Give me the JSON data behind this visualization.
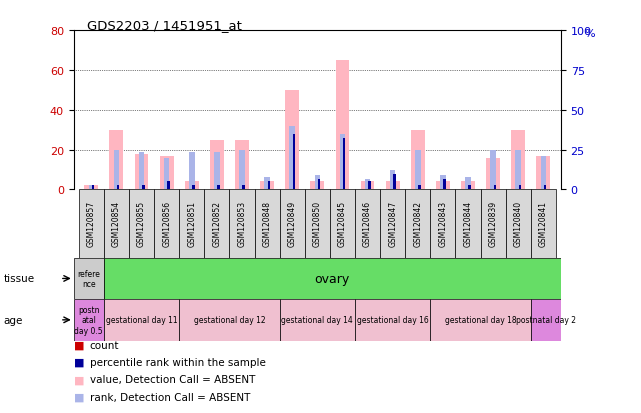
{
  "title": "GDS2203 / 1451951_at",
  "samples": [
    "GSM120857",
    "GSM120854",
    "GSM120855",
    "GSM120856",
    "GSM120851",
    "GSM120852",
    "GSM120853",
    "GSM120848",
    "GSM120849",
    "GSM120850",
    "GSM120845",
    "GSM120846",
    "GSM120847",
    "GSM120842",
    "GSM120843",
    "GSM120844",
    "GSM120839",
    "GSM120840",
    "GSM120841"
  ],
  "count_values": [
    0,
    0,
    0,
    0,
    0,
    0,
    0,
    0,
    0,
    0,
    0,
    0,
    0,
    0,
    0,
    0,
    0,
    0,
    0
  ],
  "percentile_values": [
    2,
    2,
    2,
    4,
    2,
    2,
    2,
    4,
    28,
    5,
    26,
    4,
    8,
    2,
    5,
    2,
    2,
    2,
    2
  ],
  "value_absent": [
    2,
    30,
    18,
    17,
    4,
    25,
    25,
    4,
    50,
    4,
    65,
    4,
    4,
    30,
    4,
    4,
    16,
    30,
    17
  ],
  "rank_absent": [
    2,
    20,
    19,
    16,
    19,
    19,
    20,
    6,
    32,
    7,
    28,
    5,
    10,
    20,
    7,
    6,
    20,
    20,
    17
  ],
  "tissue_ref_label": "refere\nnce",
  "tissue_label": "ovary",
  "tissue_ref_color": "#cccccc",
  "tissue_color": "#66dd66",
  "age_groups": [
    {
      "label": "postn\natal\nday 0.5",
      "color": "#dd88dd",
      "start": 0,
      "end": 1
    },
    {
      "label": "gestational day 11",
      "color": "#f0c0d0",
      "start": 1,
      "end": 4
    },
    {
      "label": "gestational day 12",
      "color": "#f0c0d0",
      "start": 4,
      "end": 8
    },
    {
      "label": "gestational day 14",
      "color": "#f0c0d0",
      "start": 8,
      "end": 11
    },
    {
      "label": "gestational day 16",
      "color": "#f0c0d0",
      "start": 11,
      "end": 14
    },
    {
      "label": "gestational day 18",
      "color": "#f0c0d0",
      "start": 14,
      "end": 18
    },
    {
      "label": "postnatal day 2",
      "color": "#dd88dd",
      "start": 18,
      "end": 19
    }
  ],
  "left_ylim": [
    0,
    80
  ],
  "right_ylim": [
    0,
    100
  ],
  "left_yticks": [
    0,
    20,
    40,
    60,
    80
  ],
  "right_yticks": [
    0,
    25,
    50,
    75,
    100
  ],
  "color_count": "#cc0000",
  "color_percentile": "#000099",
  "color_value_absent": "#ffb6c1",
  "color_rank_absent": "#aab4e8",
  "bg_color": "#ffffff",
  "tick_label_color_left": "#cc0000",
  "tick_label_color_right": "#0000cc",
  "legend_items": [
    {
      "color": "#cc0000",
      "label": "count"
    },
    {
      "color": "#000099",
      "label": "percentile rank within the sample"
    },
    {
      "color": "#ffb6c1",
      "label": "value, Detection Call = ABSENT"
    },
    {
      "color": "#aab4e8",
      "label": "rank, Detection Call = ABSENT"
    }
  ]
}
